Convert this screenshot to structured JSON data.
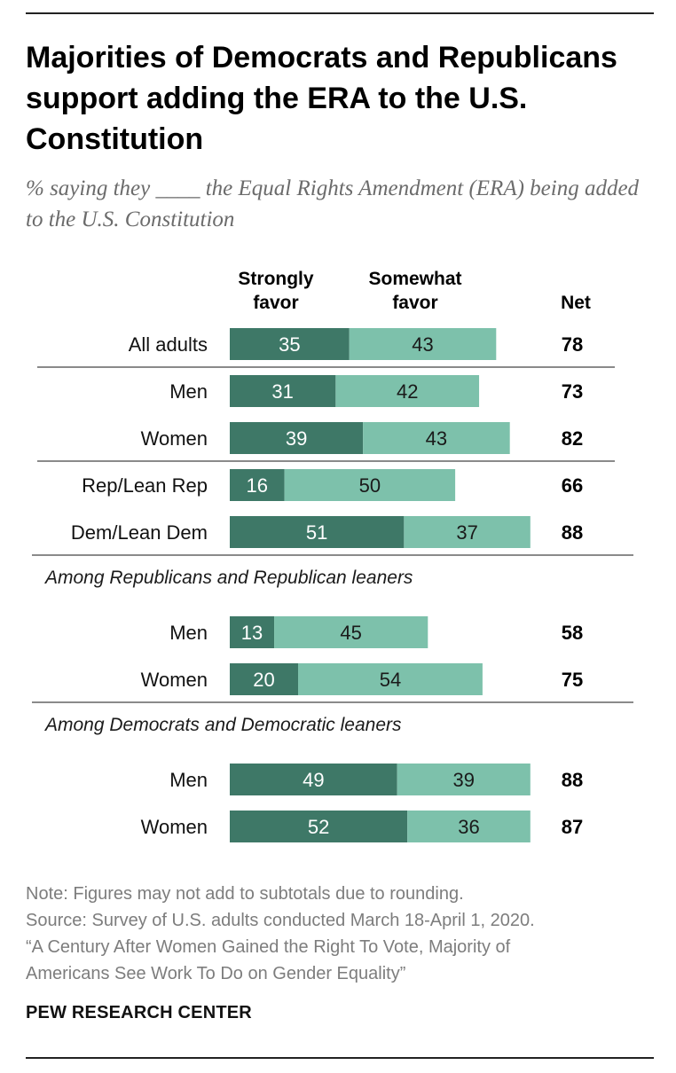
{
  "title": "Majorities of Democrats and Republicans support adding the ERA to the U.S. Constitution",
  "subtitle": "% saying they ____ the Equal Rights Amendment (ERA) being added to the U.S. Constitution",
  "colors": {
    "strongly": "#3e7867",
    "somewhat": "#7dc1ab",
    "divider": "#8a8a8a"
  },
  "chart_data": {
    "type": "bar",
    "orientation": "horizontal",
    "stacked": true,
    "series_headers": [
      "Strongly favor",
      "Somewhat favor"
    ],
    "net_header": "Net",
    "groups": [
      {
        "heading": "",
        "rows": [
          {
            "label": "All adults",
            "strongly": 35,
            "somewhat": 43,
            "net": 78
          }
        ]
      },
      {
        "heading": "",
        "rows": [
          {
            "label": "Men",
            "strongly": 31,
            "somewhat": 42,
            "net": 73
          },
          {
            "label": "Women",
            "strongly": 39,
            "somewhat": 43,
            "net": 82
          }
        ]
      },
      {
        "heading": "",
        "rows": [
          {
            "label": "Rep/Lean Rep",
            "strongly": 16,
            "somewhat": 50,
            "net": 66
          },
          {
            "label": "Dem/Lean Dem",
            "strongly": 51,
            "somewhat": 37,
            "net": 88
          }
        ]
      },
      {
        "heading": "Among Republicans and Republican leaners",
        "rows": [
          {
            "label": "Men",
            "strongly": 13,
            "somewhat": 45,
            "net": 58
          },
          {
            "label": "Women",
            "strongly": 20,
            "somewhat": 54,
            "net": 75
          }
        ]
      },
      {
        "heading": "Among Democrats and Democratic leaners",
        "rows": [
          {
            "label": "Men",
            "strongly": 49,
            "somewhat": 39,
            "net": 88
          },
          {
            "label": "Women",
            "strongly": 52,
            "somewhat": 36,
            "net": 87
          }
        ]
      }
    ]
  },
  "footer": {
    "note": "Note: Figures may not add to subtotals due to rounding.",
    "source": "Source: Survey of U.S. adults conducted March 18-April 1, 2020.",
    "report_line1": "“A Century After Women Gained the Right To Vote, Majority of",
    "report_line2": "Americans See Work To Do on Gender Equality”",
    "brand": "PEW RESEARCH CENTER"
  }
}
